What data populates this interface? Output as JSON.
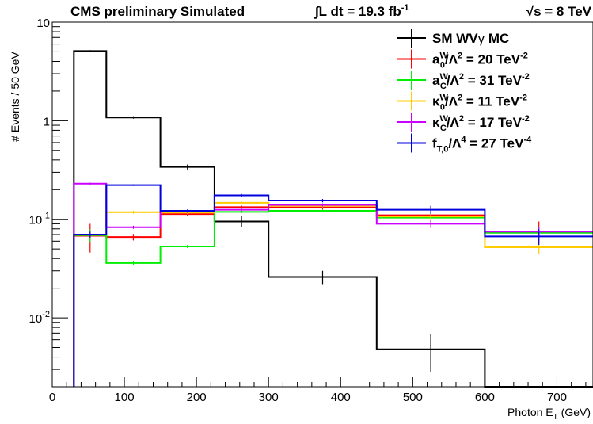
{
  "chart_data": {
    "type": "line",
    "title_left": "CMS preliminary Simulated",
    "title_lumi": "∫L dt = 19.3 fb",
    "title_lumi_sup": "-1",
    "title_energy": "√s = 8 TeV",
    "xlabel": "Photon E",
    "xlabel_sub": "T",
    "xlabel_unit": " (GeV)",
    "ylabel": "# Events / 50 GeV",
    "xlim": [
      0,
      750
    ],
    "ylim": [
      0.002,
      10
    ],
    "yscale": "log",
    "grid": false,
    "legend_position": "top-right",
    "x_ticks": [
      0,
      100,
      200,
      300,
      400,
      500,
      600,
      700
    ],
    "y_ticks": [
      {
        "value": 0.01,
        "base": "10",
        "exp": "-2"
      },
      {
        "value": 0.1,
        "base": "10",
        "exp": "-1"
      },
      {
        "value": 1,
        "base": "1",
        "exp": ""
      },
      {
        "value": 10,
        "base": "10",
        "exp": ""
      }
    ],
    "bin_edges": [
      30,
      75,
      150,
      225,
      300,
      450,
      600,
      750
    ],
    "series": [
      {
        "name": "SM WVγ MC",
        "color": "#000000",
        "values": [
          5.1,
          1.08,
          0.34,
          0.095,
          0.026,
          0.0048,
          0.0015
        ],
        "errors": [
          0.1,
          0.03,
          0.02,
          0.012,
          0.004,
          0.002,
          0.0
        ]
      },
      {
        "name": "a0W/Λ2 = 20 TeV-2",
        "color": "#ff0000",
        "values": [
          0.068,
          0.066,
          0.113,
          0.133,
          0.132,
          0.11,
          0.075
        ],
        "errors": [
          0.022,
          0.005,
          0.005,
          0.005,
          0.006,
          0.01,
          0.02
        ]
      },
      {
        "name": "aCW/Λ2 = 31 TeV-2",
        "color": "#00ee00",
        "values": [
          0.069,
          0.036,
          0.053,
          0.119,
          0.122,
          0.104,
          0.073
        ],
        "errors": [
          0.01,
          0.002,
          0.002,
          0.004,
          0.004,
          0.006,
          0.01
        ]
      },
      {
        "name": "κ0W/Λ2 = 11 TeV-2",
        "color": "#ffcc00",
        "values": [
          0.07,
          0.118,
          0.117,
          0.147,
          0.137,
          0.107,
          0.052
        ],
        "errors": [
          0.005,
          0.004,
          0.004,
          0.005,
          0.005,
          0.008,
          0.008
        ]
      },
      {
        "name": "κCW/Λ2 = 17 TeV-2",
        "color": "#cc00ff",
        "values": [
          0.23,
          0.083,
          0.12,
          0.125,
          0.14,
          0.09,
          0.075
        ],
        "errors": [
          0.005,
          0.003,
          0.004,
          0.004,
          0.005,
          0.008,
          0.008
        ]
      },
      {
        "name": "fT,0/Λ4 = 27 TeV-4",
        "color": "#0000dd",
        "values": [
          0.07,
          0.222,
          0.122,
          0.175,
          0.155,
          0.125,
          0.067
        ],
        "errors": [
          0.005,
          0.004,
          0.004,
          0.006,
          0.006,
          0.012,
          0.012
        ]
      }
    ]
  },
  "legend": [
    {
      "main": "SM WV",
      "greek": "γ",
      "rest": " MC"
    },
    {
      "sym": "a",
      "sup": "W",
      "sub": "0",
      "rest": "/Λ",
      "p": "2",
      "eq": " = 20 TeV",
      "u": "-2"
    },
    {
      "sym": "a",
      "sup": "W",
      "sub": "C",
      "rest": "/Λ",
      "p": "2",
      "eq": " = 31 TeV",
      "u": "-2"
    },
    {
      "sym": "κ",
      "sup": "W",
      "sub": "0",
      "rest": "/Λ",
      "p": "2",
      "eq": " = 11 TeV",
      "u": "-2"
    },
    {
      "sym": "κ",
      "sup": "W",
      "sub": "C",
      "rest": "/Λ",
      "p": "2",
      "eq": " = 17 TeV",
      "u": "-2"
    },
    {
      "sym": "f",
      "sup": "",
      "sub": "T,0",
      "rest": "/Λ",
      "p": "4",
      "eq": " = 27 TeV",
      "u": "-4"
    }
  ]
}
